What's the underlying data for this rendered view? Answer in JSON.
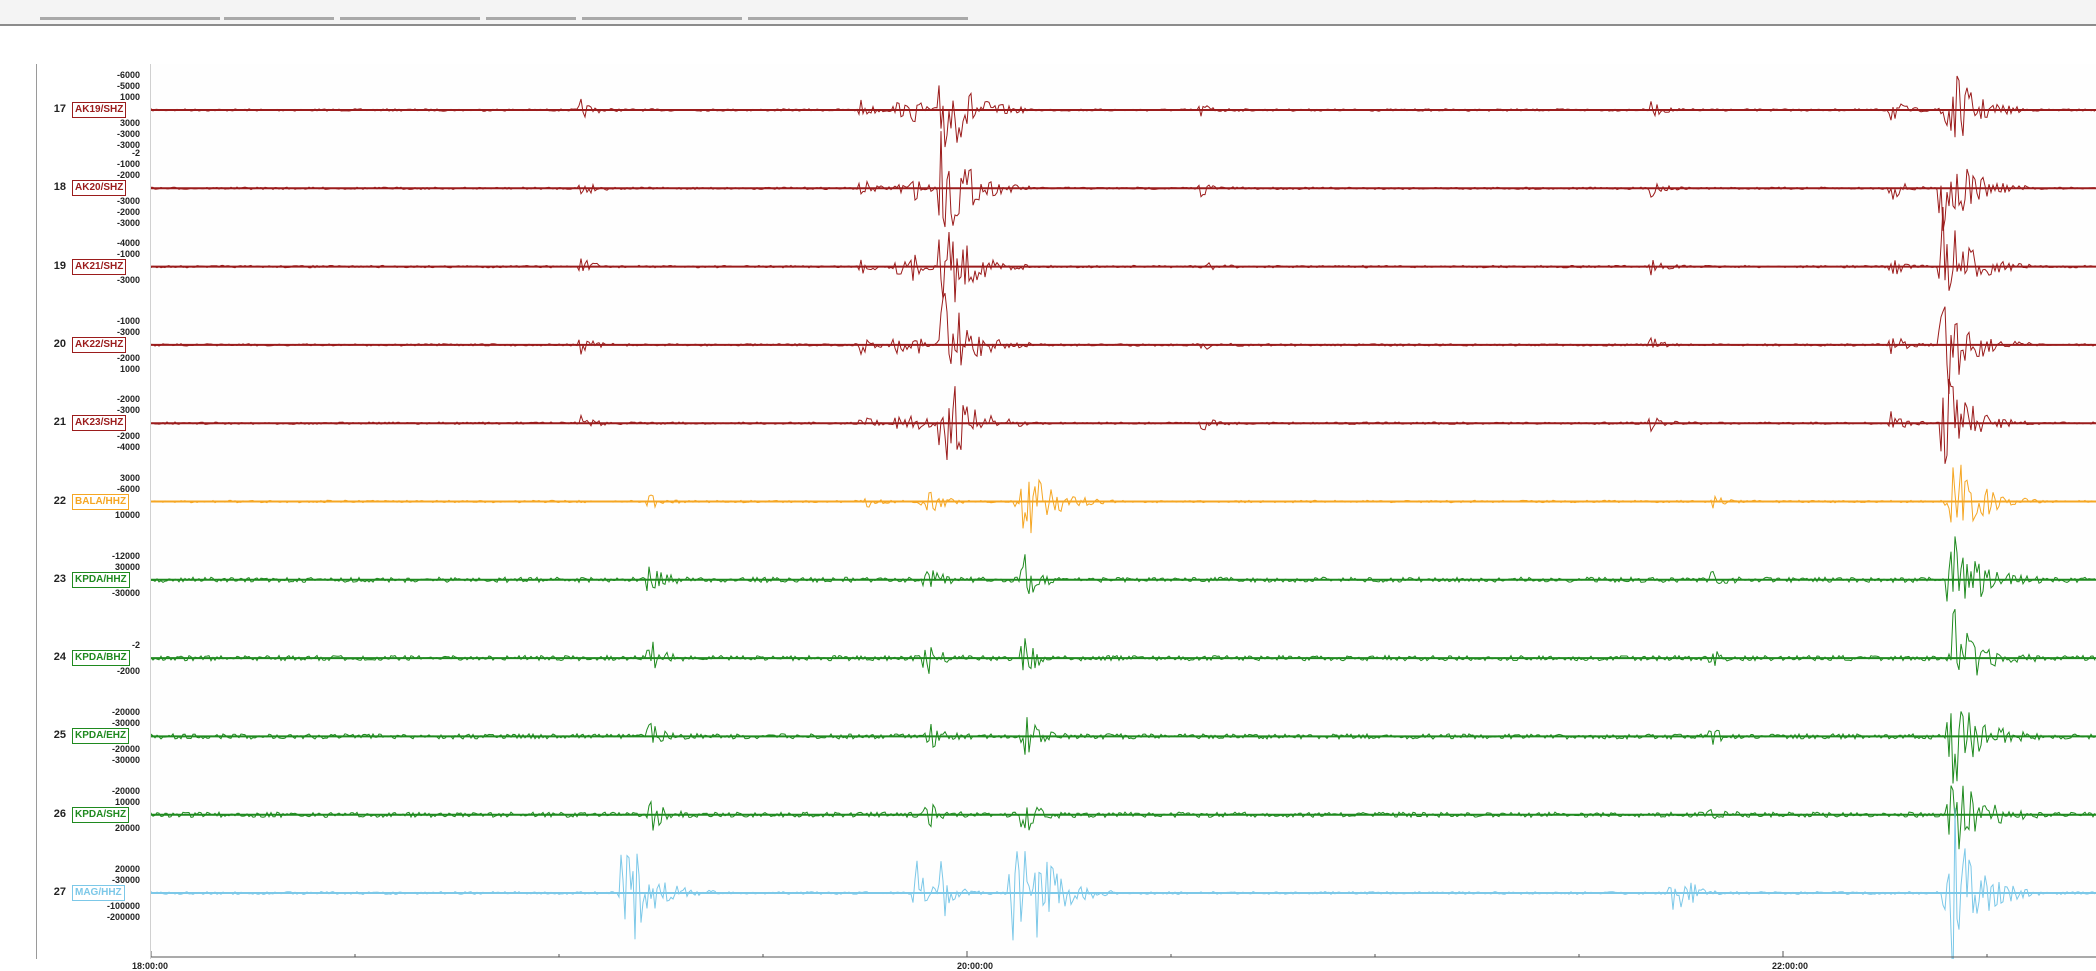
{
  "colors": {
    "ak": "#9b1c1c",
    "bal": "#f5a623",
    "kpda": "#1f8a1f",
    "mag": "#7cc8e8"
  },
  "channels": [
    {
      "num": "17",
      "label": "AK19/SHZ",
      "color": "ak",
      "amps": [
        "-6000",
        "-5000",
        "1000",
        "3000",
        "-3000",
        "-3000"
      ]
    },
    {
      "num": "18",
      "label": "AK20/SHZ",
      "color": "ak",
      "amps": [
        "-2",
        "-1000",
        "-2000",
        "-3000",
        "-2000",
        "-3000"
      ]
    },
    {
      "num": "19",
      "label": "AK21/SHZ",
      "color": "ak",
      "amps": [
        "-4000",
        "-1000",
        "-3000"
      ]
    },
    {
      "num": "20",
      "label": "AK22/SHZ",
      "color": "ak",
      "amps": [
        "-1000",
        "-3000",
        "-2000",
        "1000"
      ]
    },
    {
      "num": "21",
      "label": "AK23/SHZ",
      "color": "ak",
      "amps": [
        "-2000",
        "-3000",
        "-2000",
        "-4000"
      ]
    },
    {
      "num": "22",
      "label": "BALA/HHZ",
      "color": "bal",
      "amps": [
        "3000",
        "-6000",
        "10000"
      ]
    },
    {
      "num": "23",
      "label": "KPDA/HHZ",
      "color": "kpda",
      "amps": [
        "-12000",
        "30000",
        "-30000"
      ]
    },
    {
      "num": "24",
      "label": "KPDA/BHZ",
      "color": "kpda",
      "amps": [
        "-2",
        "-2000"
      ]
    },
    {
      "num": "25",
      "label": "KPDA/EHZ",
      "color": "kpda",
      "amps": [
        "-20000",
        "-30000",
        "-20000",
        "-30000"
      ]
    },
    {
      "num": "26",
      "label": "KPDA/SHZ",
      "color": "kpda",
      "amps": [
        "-20000",
        "10000",
        "20000"
      ]
    },
    {
      "num": "27",
      "label": "MAG/HHZ",
      "color": "mag",
      "amps": [
        "20000",
        "-30000",
        "-100000",
        "-200000"
      ]
    }
  ],
  "time_axis": [
    "18:00:00",
    "20:00:00",
    "22:00:00"
  ]
}
